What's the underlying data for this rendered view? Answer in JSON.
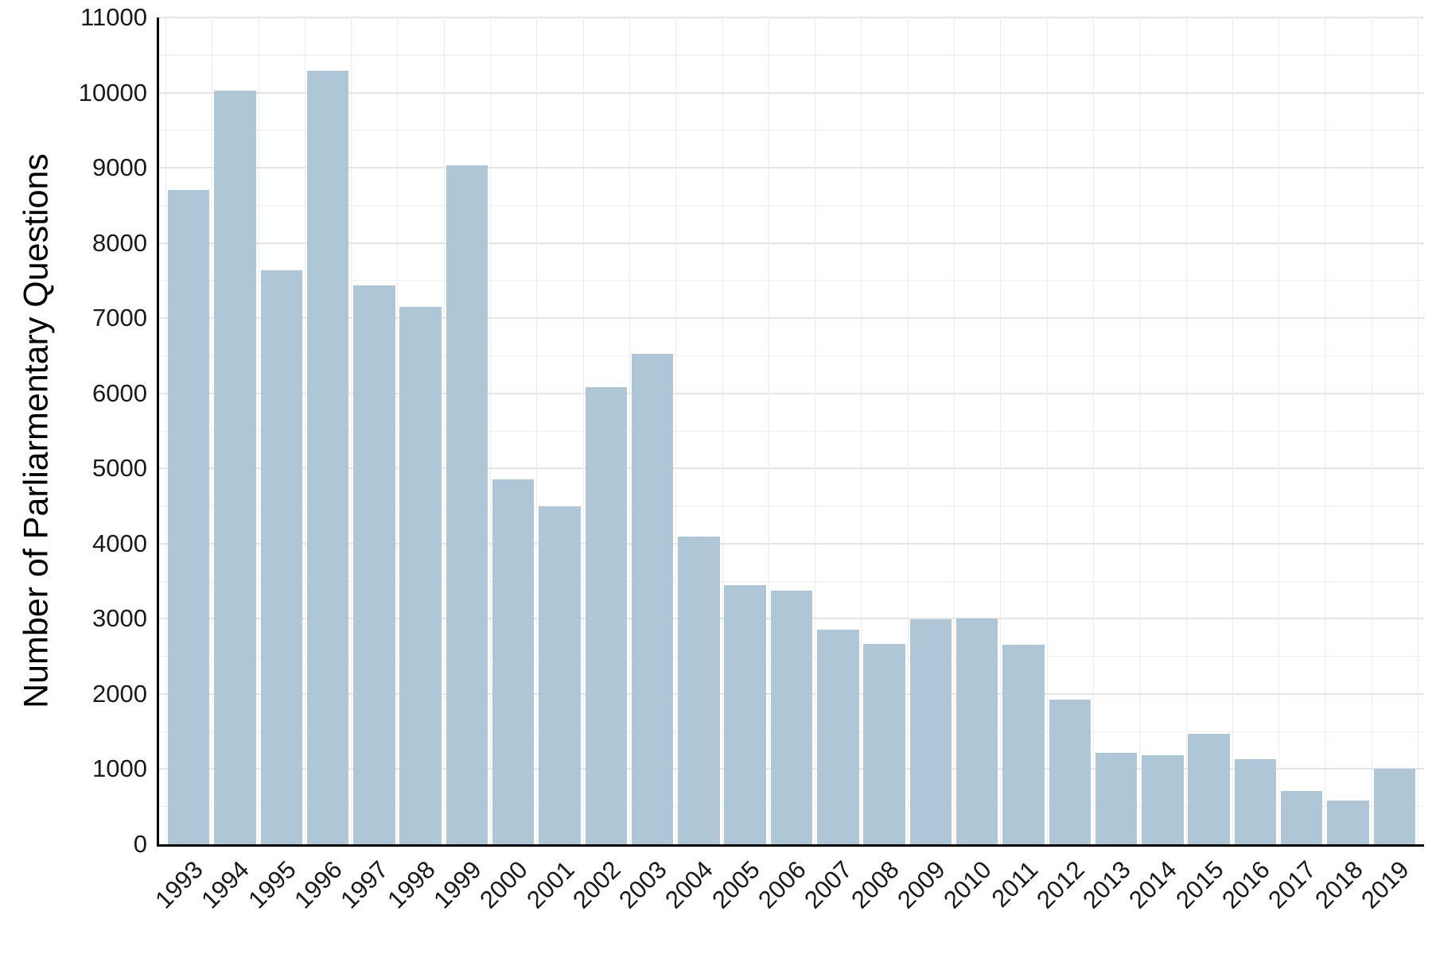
{
  "chart_data": {
    "type": "bar",
    "title": "",
    "xlabel": "",
    "ylabel": "Number of Parliarmentary Questions",
    "categories": [
      "1993",
      "1994",
      "1995",
      "1996",
      "1997",
      "1998",
      "1999",
      "2000",
      "2001",
      "2002",
      "2003",
      "2004",
      "2005",
      "2006",
      "2007",
      "2008",
      "2009",
      "2010",
      "2011",
      "2012",
      "2013",
      "2014",
      "2015",
      "2016",
      "2017",
      "2018",
      "2019"
    ],
    "values": [
      8700,
      10030,
      7640,
      10290,
      7440,
      7150,
      9030,
      4860,
      4500,
      6080,
      6530,
      4090,
      3450,
      3370,
      2860,
      2670,
      2990,
      3000,
      2650,
      1920,
      1220,
      1180,
      1470,
      1130,
      710,
      580,
      1010
    ],
    "ylim": [
      0,
      11000
    ],
    "ytick_step": 1000,
    "ytick_minor_step": 500,
    "bar_color": "#aec6d6",
    "axis_color": "#000000",
    "grid": true,
    "legend": "none"
  }
}
